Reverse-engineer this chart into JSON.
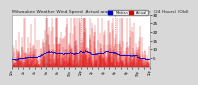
{
  "title": "Milwaukee Weather Wind Speed  Actual and Median  by Minute  (24 Hours) (Old)",
  "title_fontsize": 3.2,
  "background_color": "#d8d8d8",
  "plot_background": "#ffffff",
  "n_points": 1440,
  "y_min": 0,
  "y_max": 30,
  "yticks": [
    5,
    10,
    15,
    20,
    25,
    30
  ],
  "ytick_fontsize": 3.0,
  "xtick_fontsize": 2.2,
  "actual_color": "#dd0000",
  "median_color": "#0000cc",
  "vline_color": "#999999",
  "seed": 99
}
